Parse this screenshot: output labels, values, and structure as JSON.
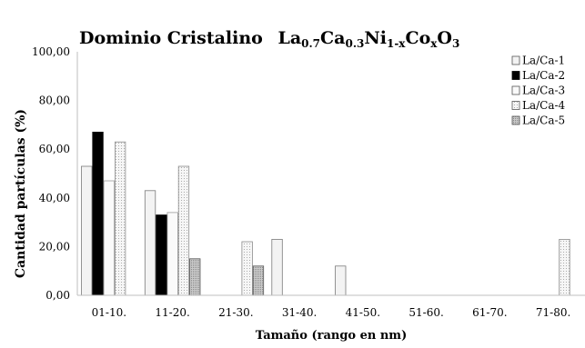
{
  "chart_data": {
    "type": "bar",
    "title": {
      "prefix": "Dominio Cristalino",
      "formula": [
        {
          "t": "La"
        },
        {
          "t": "0.7",
          "sub": true
        },
        {
          "t": "Ca"
        },
        {
          "t": "0.3",
          "sub": true
        },
        {
          "t": "Ni"
        },
        {
          "t": "1-x",
          "sub": true
        },
        {
          "t": "Co"
        },
        {
          "t": "x",
          "sub": true
        },
        {
          "t": "O"
        },
        {
          "t": "3",
          "sub": true
        }
      ]
    },
    "xlabel": "Tamaño (rango en nm)",
    "ylabel": "Cantidad partículas (%)",
    "ylim": [
      0,
      100
    ],
    "yticks": [
      "0,00",
      "20,00",
      "40,00",
      "60,00",
      "80,00",
      "100,00"
    ],
    "categories": [
      "01-10.",
      "11-20.",
      "21-30.",
      "31-40.",
      "41-50.",
      "51-60.",
      "61-70.",
      "71-80."
    ],
    "legend_position": "top-right",
    "grid": false,
    "series": [
      {
        "name": "La/Ca-1",
        "fill": "#f3f3f3",
        "stroke": "#7a7a7a",
        "pattern": "none",
        "values": [
          53,
          43,
          0,
          23,
          12,
          0,
          0,
          0
        ]
      },
      {
        "name": "La/Ca-2",
        "fill": "#000000",
        "stroke": "#000000",
        "pattern": "none",
        "values": [
          67,
          33,
          0,
          0,
          0,
          0,
          0,
          0
        ]
      },
      {
        "name": "La/Ca-3",
        "fill": "#fafafa",
        "stroke": "#9a9a9a",
        "pattern": "none",
        "values": [
          47,
          34,
          0,
          0,
          0,
          0,
          0,
          0
        ]
      },
      {
        "name": "La/Ca-4",
        "fill": "#f6f6f6",
        "stroke": "#8a8a8a",
        "pattern": "dots",
        "values": [
          63,
          53,
          22,
          0,
          0,
          0,
          0,
          23
        ]
      },
      {
        "name": "La/Ca-5",
        "fill": "#d0d0d0",
        "stroke": "#555555",
        "pattern": "dense",
        "values": [
          0,
          15,
          12,
          0,
          0,
          0,
          0,
          0
        ]
      }
    ]
  }
}
